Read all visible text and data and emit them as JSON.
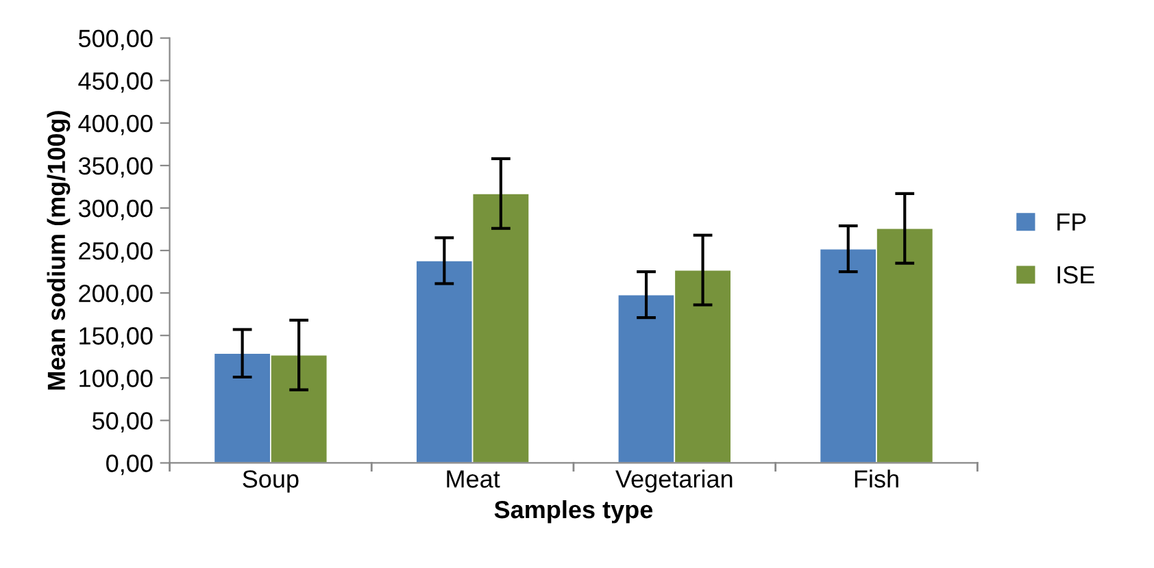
{
  "chart_data": {
    "type": "bar",
    "xlabel": "Samples type",
    "ylabel": "Mean sodium (mg/100g)",
    "categories": [
      "Soup",
      "Meat",
      "Vegetarian",
      "Fish"
    ],
    "series": [
      {
        "name": "FP",
        "color": "#4f81bd",
        "values": [
          129,
          238,
          198,
          252
        ],
        "errors": [
          28,
          27,
          27,
          27
        ]
      },
      {
        "name": "ISE",
        "color": "#77933c",
        "values": [
          127,
          317,
          227,
          276
        ],
        "errors": [
          41,
          41,
          41,
          41
        ]
      }
    ],
    "ylim": [
      0,
      500
    ],
    "yticks": [
      {
        "value": 0,
        "label": "0,00"
      },
      {
        "value": 50,
        "label": "50,00"
      },
      {
        "value": 100,
        "label": "100,00"
      },
      {
        "value": 150,
        "label": "150,00"
      },
      {
        "value": 200,
        "label": "200,00"
      },
      {
        "value": 250,
        "label": "250,00"
      },
      {
        "value": 300,
        "label": "300,00"
      },
      {
        "value": 350,
        "label": "350,00"
      },
      {
        "value": 400,
        "label": "400,00"
      },
      {
        "value": 450,
        "label": "450,00"
      },
      {
        "value": 500,
        "label": "500,00"
      }
    ],
    "grid": false,
    "legend": "right"
  }
}
